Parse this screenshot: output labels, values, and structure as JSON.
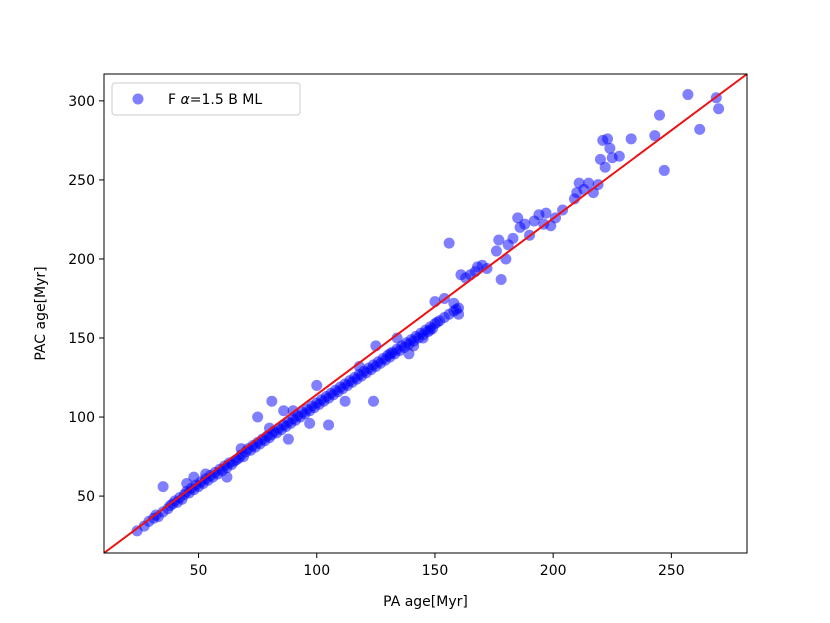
{
  "chart_data": {
    "type": "scatter",
    "xlabel": "PA age[Myr]",
    "ylabel": "PAC age[Myr]",
    "xlim": [
      10,
      282
    ],
    "ylim": [
      14,
      317
    ],
    "xticks": [
      50,
      100,
      150,
      200,
      250
    ],
    "yticks": [
      50,
      100,
      150,
      200,
      250,
      300
    ],
    "grid": false,
    "legend_placement": "top-left",
    "series": [
      {
        "name": "F α=1.5 B ML",
        "legend_label": {
          "prefix": "F ",
          "alpha": "α",
          "suffix": "=1.5 B ML"
        },
        "color": "#0000ff",
        "opacity": 0.5,
        "points": [
          [
            24,
            28
          ],
          [
            27,
            31
          ],
          [
            29,
            34
          ],
          [
            31,
            36
          ],
          [
            32,
            38
          ],
          [
            33,
            37
          ],
          [
            35,
            40
          ],
          [
            35,
            56
          ],
          [
            37,
            42
          ],
          [
            38,
            44
          ],
          [
            39,
            45
          ],
          [
            40,
            47
          ],
          [
            41,
            46
          ],
          [
            42,
            49
          ],
          [
            43,
            48
          ],
          [
            44,
            51
          ],
          [
            45,
            53
          ],
          [
            45,
            58
          ],
          [
            46,
            52
          ],
          [
            47,
            55
          ],
          [
            48,
            54
          ],
          [
            48,
            62
          ],
          [
            49,
            57
          ],
          [
            50,
            56
          ],
          [
            51,
            59
          ],
          [
            52,
            58
          ],
          [
            53,
            61
          ],
          [
            53,
            64
          ],
          [
            54,
            60
          ],
          [
            55,
            63
          ],
          [
            56,
            62
          ],
          [
            57,
            65
          ],
          [
            58,
            64
          ],
          [
            59,
            67
          ],
          [
            60,
            66
          ],
          [
            61,
            69
          ],
          [
            62,
            62
          ],
          [
            62,
            68
          ],
          [
            63,
            71
          ],
          [
            64,
            70
          ],
          [
            65,
            72
          ],
          [
            66,
            73
          ],
          [
            67,
            74
          ],
          [
            68,
            76
          ],
          [
            68,
            80
          ],
          [
            69,
            75
          ],
          [
            70,
            78
          ],
          [
            71,
            80
          ],
          [
            72,
            79
          ],
          [
            73,
            82
          ],
          [
            74,
            81
          ],
          [
            75,
            84
          ],
          [
            76,
            83
          ],
          [
            77,
            86
          ],
          [
            78,
            85
          ],
          [
            79,
            88
          ],
          [
            80,
            87
          ],
          [
            80,
            93
          ],
          [
            81,
            89
          ],
          [
            82,
            91
          ],
          [
            83,
            90
          ],
          [
            84,
            93
          ],
          [
            85,
            92
          ],
          [
            86,
            95
          ],
          [
            87,
            94
          ],
          [
            88,
            97
          ],
          [
            88,
            86
          ],
          [
            89,
            96
          ],
          [
            90,
            99
          ],
          [
            90,
            104
          ],
          [
            91,
            98
          ],
          [
            92,
            101
          ],
          [
            93,
            100
          ],
          [
            94,
            103
          ],
          [
            95,
            102
          ],
          [
            96,
            105
          ],
          [
            97,
            104
          ],
          [
            97,
            96
          ],
          [
            98,
            107
          ],
          [
            99,
            106
          ],
          [
            100,
            109
          ],
          [
            101,
            108
          ],
          [
            102,
            111
          ],
          [
            103,
            110
          ],
          [
            104,
            113
          ],
          [
            105,
            112
          ],
          [
            106,
            115
          ],
          [
            107,
            114
          ],
          [
            108,
            117
          ],
          [
            109,
            116
          ],
          [
            110,
            119
          ],
          [
            111,
            118
          ],
          [
            112,
            121
          ],
          [
            113,
            120
          ],
          [
            114,
            123
          ],
          [
            115,
            122
          ],
          [
            116,
            125
          ],
          [
            117,
            124
          ],
          [
            118,
            127
          ],
          [
            119,
            126
          ],
          [
            120,
            129
          ],
          [
            121,
            128
          ],
          [
            122,
            131
          ],
          [
            123,
            130
          ],
          [
            124,
            133
          ],
          [
            125,
            132
          ],
          [
            126,
            135
          ],
          [
            127,
            134
          ],
          [
            128,
            137
          ],
          [
            129,
            136
          ],
          [
            130,
            139
          ],
          [
            131,
            138
          ],
          [
            132,
            141
          ],
          [
            133,
            140
          ],
          [
            134,
            143
          ],
          [
            135,
            142
          ],
          [
            136,
            145
          ],
          [
            137,
            144
          ],
          [
            138,
            147
          ],
          [
            139,
            146
          ],
          [
            140,
            149
          ],
          [
            141,
            148
          ],
          [
            142,
            151
          ],
          [
            143,
            150
          ],
          [
            144,
            153
          ],
          [
            145,
            152
          ],
          [
            146,
            155
          ],
          [
            147,
            154
          ],
          [
            148,
            157
          ],
          [
            149,
            156
          ],
          [
            150,
            159
          ],
          [
            152,
            161
          ],
          [
            154,
            163
          ],
          [
            156,
            165
          ],
          [
            158,
            167
          ],
          [
            160,
            169
          ],
          [
            75,
            100
          ],
          [
            81,
            110
          ],
          [
            86,
            104
          ],
          [
            100,
            120
          ],
          [
            105,
            95
          ],
          [
            112,
            110
          ],
          [
            118,
            132
          ],
          [
            124,
            110
          ],
          [
            125,
            145
          ],
          [
            131,
            140
          ],
          [
            134,
            150
          ],
          [
            139,
            140
          ],
          [
            141,
            145
          ],
          [
            145,
            150
          ],
          [
            148,
            155
          ],
          [
            150,
            173
          ],
          [
            151,
            160
          ],
          [
            154,
            175
          ],
          [
            156,
            210
          ],
          [
            158,
            172
          ],
          [
            159,
            168
          ],
          [
            160,
            165
          ],
          [
            161,
            190
          ],
          [
            163,
            188
          ],
          [
            165,
            190
          ],
          [
            167,
            192
          ],
          [
            168,
            195
          ],
          [
            170,
            196
          ],
          [
            172,
            194
          ],
          [
            176,
            205
          ],
          [
            177,
            212
          ],
          [
            178,
            187
          ],
          [
            180,
            200
          ],
          [
            181,
            209
          ],
          [
            183,
            213
          ],
          [
            185,
            226
          ],
          [
            186,
            220
          ],
          [
            188,
            222
          ],
          [
            190,
            215
          ],
          [
            192,
            224
          ],
          [
            194,
            228
          ],
          [
            196,
            222
          ],
          [
            197,
            229
          ],
          [
            199,
            221
          ],
          [
            201,
            226
          ],
          [
            204,
            231
          ],
          [
            209,
            238
          ],
          [
            210,
            242
          ],
          [
            211,
            248
          ],
          [
            213,
            244
          ],
          [
            215,
            248
          ],
          [
            217,
            242
          ],
          [
            219,
            247
          ],
          [
            220,
            263
          ],
          [
            221,
            275
          ],
          [
            222,
            258
          ],
          [
            223,
            276
          ],
          [
            224,
            270
          ],
          [
            225,
            264
          ],
          [
            228,
            265
          ],
          [
            233,
            276
          ],
          [
            243,
            278
          ],
          [
            245,
            291
          ],
          [
            247,
            256
          ],
          [
            257,
            304
          ],
          [
            262,
            282
          ],
          [
            269,
            302
          ],
          [
            270,
            295
          ]
        ]
      }
    ],
    "reference_line": {
      "color": "#ee1111",
      "from": [
        10,
        14
      ],
      "to": [
        282,
        317
      ]
    }
  }
}
